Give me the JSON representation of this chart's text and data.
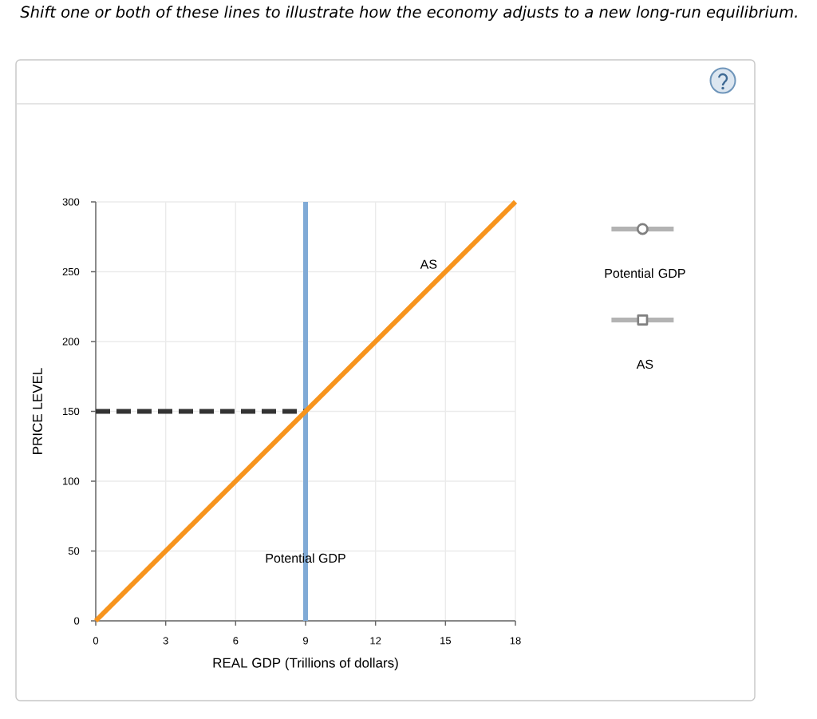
{
  "chart_data": {
    "type": "line",
    "title": "Shift one or both of these lines to illustrate how the economy adjusts to a new long-run equilibrium.",
    "xlabel": "REAL GDP (Trillions of dollars)",
    "ylabel": "PRICE LEVEL",
    "xlim": [
      0,
      18
    ],
    "ylim": [
      0,
      300
    ],
    "xticks": [
      0,
      3,
      6,
      9,
      12,
      15,
      18
    ],
    "yticks": [
      0,
      50,
      100,
      150,
      200,
      250,
      300
    ],
    "grid": true,
    "legend": "top right",
    "series": [
      {
        "name": "Potential GDP",
        "color": "#80aad6",
        "x": [
          9,
          9
        ],
        "values": [
          0,
          300
        ]
      },
      {
        "color": "#333333",
        "x": [
          0,
          9
        ],
        "values": [
          150,
          150
        ],
        "line_style": "dashed"
      },
      {
        "name": "AS",
        "color": "#f7941d",
        "x": [
          0,
          18
        ],
        "values": [
          0,
          300
        ]
      }
    ]
  }
}
